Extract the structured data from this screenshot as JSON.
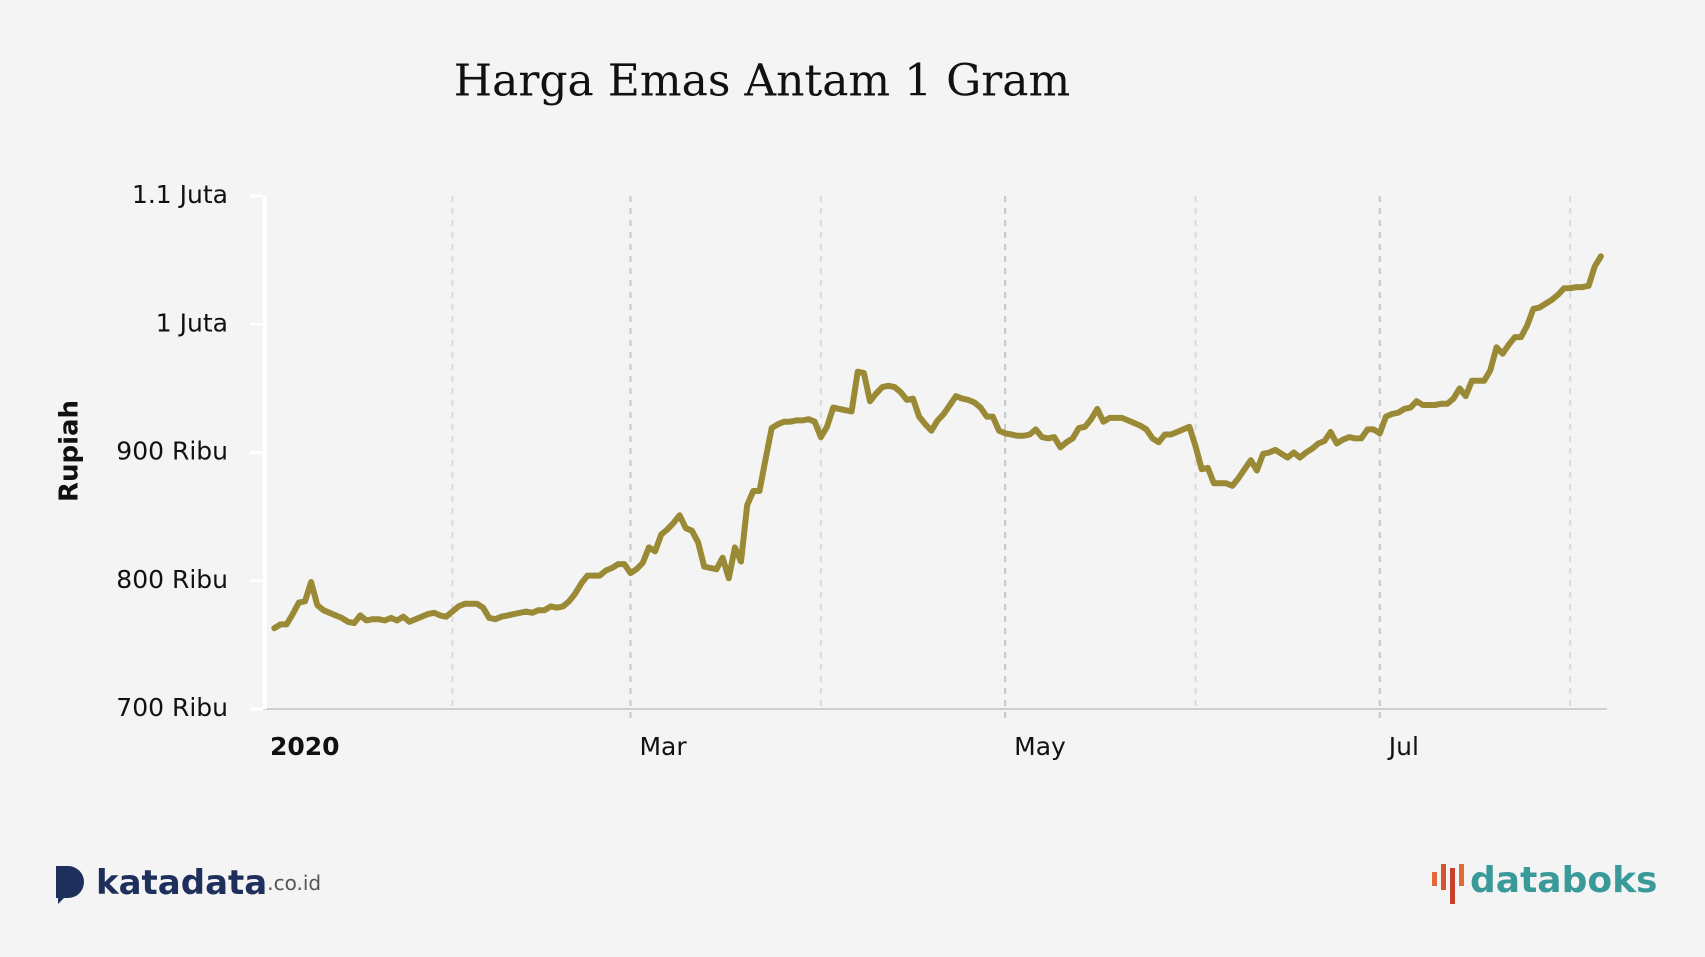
{
  "chart_data": {
    "type": "line",
    "title": "Harga Emas Antam 1 Gram",
    "y_label": "Rupiah",
    "x": [
      2,
      3,
      4,
      5,
      6,
      7,
      8,
      9,
      10,
      11,
      12,
      13,
      14,
      15,
      16,
      17,
      18,
      19,
      20,
      21,
      22,
      23,
      24,
      25,
      26,
      27,
      28,
      29,
      30,
      31,
      32,
      33,
      34,
      35,
      36,
      37,
      38,
      39,
      40,
      41,
      42,
      43,
      44,
      45,
      46,
      47,
      48,
      49,
      50,
      51,
      52,
      53,
      54,
      55,
      56,
      57,
      58,
      59,
      60,
      61,
      62,
      63,
      64,
      65,
      66,
      67,
      68,
      69,
      70,
      71,
      72,
      73,
      74,
      75,
      76,
      77,
      78,
      79,
      80,
      81,
      82,
      83,
      84,
      85,
      86,
      87,
      88,
      89,
      90,
      91,
      92,
      93,
      94,
      95,
      96,
      97,
      98,
      99,
      100,
      101,
      102,
      103,
      104,
      105,
      106,
      107,
      108,
      109,
      110,
      111,
      112,
      113,
      114,
      115,
      116,
      117,
      118,
      119,
      120,
      121,
      122,
      123,
      124,
      125,
      126,
      127,
      128,
      129,
      130,
      131,
      132,
      133,
      134,
      135,
      136,
      137,
      138,
      139,
      140,
      141,
      142,
      143,
      144,
      145,
      146,
      147,
      148,
      149,
      150,
      151,
      152,
      153,
      154,
      155,
      156,
      157,
      158,
      159,
      160,
      161,
      162,
      163,
      164,
      165,
      166,
      167,
      168,
      169,
      170,
      171,
      172,
      173,
      174,
      175,
      176,
      177,
      178,
      179,
      180,
      181,
      182,
      183,
      184,
      185,
      186,
      187,
      188,
      189,
      190,
      191,
      192,
      193,
      194,
      195,
      196,
      197,
      198,
      199,
      200,
      201,
      202,
      203,
      204,
      205,
      206,
      207,
      208,
      209,
      210,
      211,
      212,
      213,
      214,
      215,
      216,
      217,
      218
    ],
    "series": [
      {
        "color": "#9a8a35",
        "values": [
          763000,
          766000,
          766000,
          774000,
          783000,
          784000,
          799000,
          781000,
          777000,
          775000,
          773000,
          771000,
          768000,
          767000,
          773000,
          769000,
          770000,
          770000,
          769000,
          771000,
          769000,
          772000,
          768000,
          770000,
          772000,
          774000,
          775000,
          773000,
          772000,
          776000,
          780000,
          782000,
          782000,
          782000,
          779000,
          771000,
          770000,
          772000,
          773000,
          774000,
          775000,
          776000,
          775000,
          777000,
          777000,
          780000,
          779000,
          780000,
          784000,
          790000,
          798000,
          804000,
          804000,
          804000,
          808000,
          810000,
          813000,
          813000,
          806000,
          809000,
          814000,
          826000,
          823000,
          836000,
          840000,
          845000,
          851000,
          841000,
          839000,
          830000,
          811000,
          810000,
          809000,
          818000,
          802000,
          826000,
          815000,
          859000,
          870000,
          870000,
          895000,
          919000,
          922000,
          924000,
          924000,
          925000,
          925000,
          926000,
          924000,
          912000,
          920000,
          935000,
          934000,
          933000,
          932000,
          963000,
          962000,
          940000,
          946000,
          951000,
          952000,
          951000,
          947000,
          941000,
          942000,
          928000,
          922000,
          917000,
          925000,
          930000,
          937000,
          944000,
          942000,
          941000,
          939000,
          935000,
          928000,
          928000,
          917000,
          915000,
          914000,
          913000,
          913000,
          914000,
          918000,
          912000,
          911000,
          912000,
          904000,
          908000,
          911000,
          919000,
          920000,
          926000,
          934000,
          924000,
          927000,
          927000,
          927000,
          925000,
          923000,
          921000,
          918000,
          911000,
          908000,
          914000,
          914000,
          916000,
          918000,
          920000,
          905000,
          887000,
          888000,
          876000,
          876000,
          876000,
          874000,
          880000,
          887000,
          894000,
          886000,
          899000,
          900000,
          902000,
          899000,
          896000,
          900000,
          896000,
          900000,
          903000,
          907000,
          909000,
          916000,
          907000,
          910000,
          912000,
          911000,
          911000,
          918000,
          918000,
          915000,
          928000,
          930000,
          931000,
          934000,
          935000,
          940000,
          937000,
          937000,
          937000,
          938000,
          938000,
          942000,
          950000,
          944000,
          956000,
          956000,
          956000,
          964000,
          982000,
          977000,
          984000,
          990000,
          990000,
          999000,
          1012000,
          1013000,
          1016000,
          1019000,
          1023000,
          1028000,
          1028000,
          1029000,
          1029000,
          1030000,
          1045000,
          1053000
        ]
      }
    ],
    "xlim": [
      0,
      219
    ],
    "xticks": [
      {
        "value": 0,
        "label": "2020"
      },
      {
        "value": 60,
        "label": "Mar"
      },
      {
        "value": 121,
        "label": "May"
      },
      {
        "value": 182,
        "label": "Jul"
      }
    ],
    "xminor": [
      31,
      91,
      152,
      213
    ],
    "ylim": [
      700000,
      1100000
    ],
    "yticks": [
      {
        "value": 700000,
        "label": "700 Ribu"
      },
      {
        "value": 800000,
        "label": "800 Ribu"
      },
      {
        "value": 900000,
        "label": "900 Ribu"
      },
      {
        "value": 1000000,
        "label": "1 Juta"
      },
      {
        "value": 1100000,
        "label": "1.1 Juta"
      }
    ],
    "grid": "x"
  },
  "branding": {
    "left": "katadata",
    "left_suffix": ".co.id",
    "right": "databoks"
  }
}
